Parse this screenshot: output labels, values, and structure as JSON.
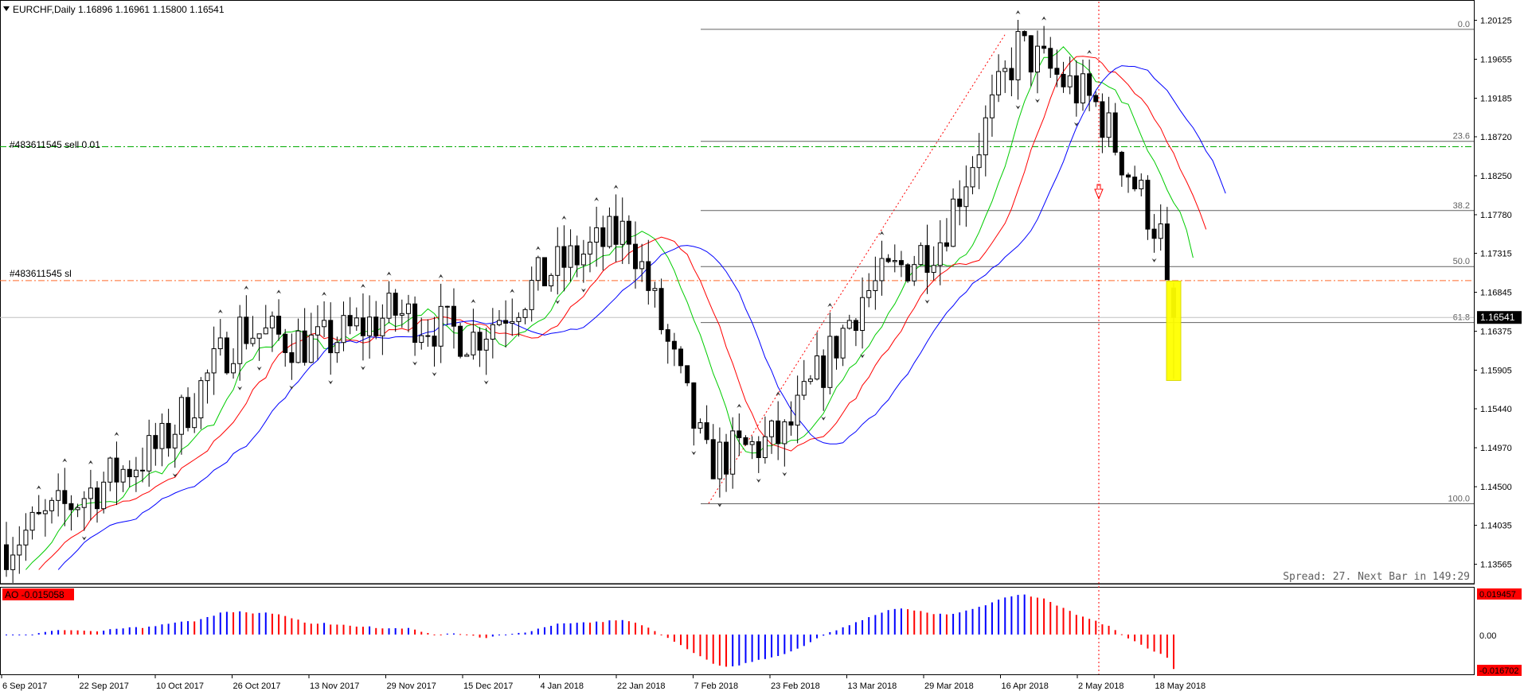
{
  "header": {
    "symbol_label": "EURCHF,Daily  1.16896 1.16961 1.15800 1.16541"
  },
  "colors": {
    "background": "#ffffff",
    "candle": "#000000",
    "ma_fast": "#00cc00",
    "ma_mid": "#ff0000",
    "ma_slow": "#0000ff",
    "order_line": "#00aa00",
    "sl_line": "#ff6a2a",
    "fib": "#606060",
    "ao_up": "#0000ff",
    "ao_down": "#ff0000",
    "highlight": "#ffff00",
    "price_tag_bg": "#000000",
    "ao_tag_bg": "#ff0000"
  },
  "price_axis": {
    "ticks": [
      "1.20125",
      "1.19655",
      "1.19185",
      "1.18720",
      "1.18250",
      "1.17780",
      "1.17315",
      "1.16845",
      "1.16375",
      "1.15905",
      "1.15440",
      "1.14970",
      "1.14500",
      "1.14035",
      "1.13565"
    ],
    "current_price": "1.16541"
  },
  "time_axis": {
    "ticks": [
      "6 Sep 2017",
      "22 Sep 2017",
      "10 Oct 2017",
      "26 Oct 2017",
      "13 Nov 2017",
      "29 Nov 2017",
      "15 Dec 2017",
      "4 Jan 2018",
      "22 Jan 2018",
      "7 Feb 2018",
      "23 Feb 2018",
      "13 Mar 2018",
      "29 Mar 2018",
      "16 Apr 2018",
      "2 May 2018",
      "18 May 2018"
    ]
  },
  "trade_lines": {
    "sell_label": "#483611545 sell 0.01",
    "sl_label": "#483611545 sl"
  },
  "fibonacci": {
    "levels": [
      "0.0",
      "23.6",
      "38.2",
      "50.0",
      "61.8",
      "100.0"
    ]
  },
  "status": {
    "spread_text": "Spread: 27. Next Bar in 149:29"
  },
  "ao_panel": {
    "label": "AO -0.015058",
    "ticks": [
      "0.019457",
      "0.00",
      "-0.016702"
    ]
  },
  "chart_data": {
    "type": "candlestick",
    "symbol": "EURCHF",
    "timeframe": "Daily",
    "ylim": [
      1.1335,
      1.2035
    ],
    "last_bar": {
      "open": 1.16896,
      "high": 1.16961,
      "low": 1.158,
      "close": 1.16541
    },
    "anchors": [
      {
        "date": "6 Sep 2017",
        "price": 1.138
      },
      {
        "date": "22 Sep 2017",
        "price": 1.144
      },
      {
        "date": "10 Oct 2017",
        "price": 1.15
      },
      {
        "date": "26 Oct 2017",
        "price": 1.164
      },
      {
        "date": "13 Nov 2017",
        "price": 1.162
      },
      {
        "date": "29 Nov 2017",
        "price": 1.166
      },
      {
        "date": "15 Dec 2017",
        "price": 1.163
      },
      {
        "date": "4 Jan 2018",
        "price": 1.171
      },
      {
        "date": "22 Jan 2018",
        "price": 1.176
      },
      {
        "date": "7 Feb 2018",
        "price": 1.148
      },
      {
        "date": "23 Feb 2018",
        "price": 1.151
      },
      {
        "date": "13 Mar 2018",
        "price": 1.168
      },
      {
        "date": "29 Mar 2018",
        "price": 1.175
      },
      {
        "date": "16 Apr 2018",
        "price": 1.198
      },
      {
        "date": "2 May 2018",
        "price": 1.191
      },
      {
        "date": "18 May 2018",
        "price": 1.172
      }
    ],
    "fib_prices": [
      {
        "level": "0.0",
        "price": 1.20015
      },
      {
        "level": "23.6",
        "price": 1.18665
      },
      {
        "level": "38.2",
        "price": 1.1783
      },
      {
        "level": "50.0",
        "price": 1.17155
      },
      {
        "level": "61.8",
        "price": 1.1648
      },
      {
        "level": "100.0",
        "price": 1.14295
      }
    ],
    "sell_price": 1.186,
    "sl_price": 1.16985,
    "ao": {
      "ylim": [
        -0.016702,
        0.019457
      ],
      "last_value": -0.015058
    }
  }
}
